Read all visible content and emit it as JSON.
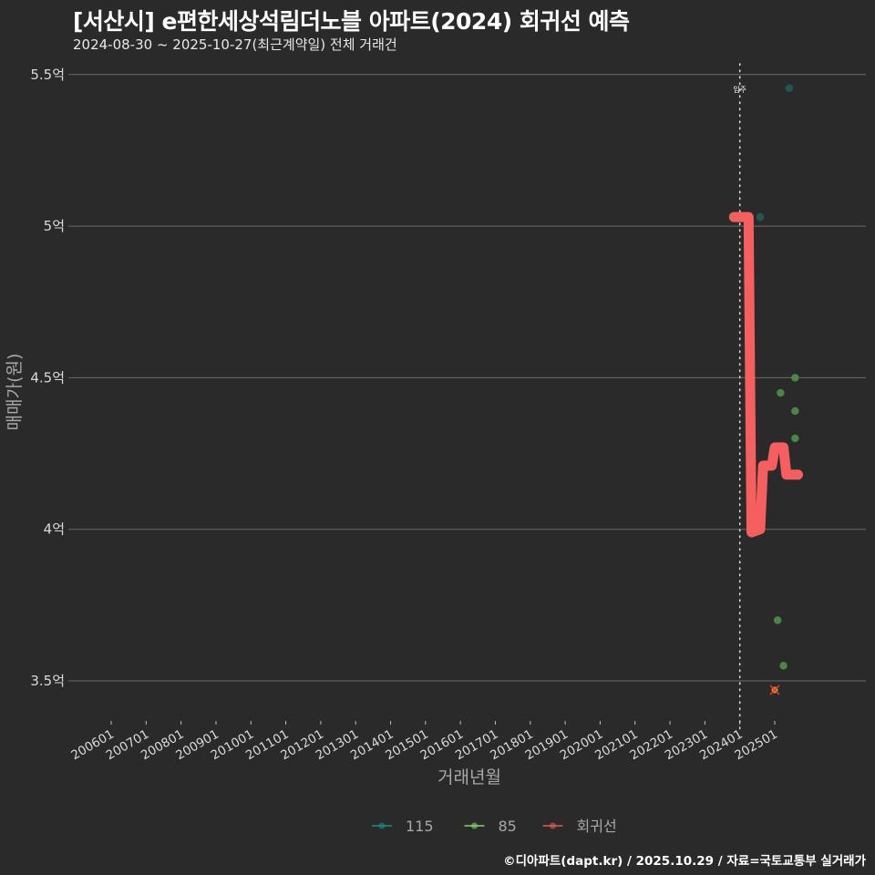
{
  "header": {
    "title": "[서산시] e편한세상석림더노블 아파트(2024) 회귀선 예측",
    "subtitle": "2024-08-30 ~ 2025-10-27(최근계약일) 전체 거래건"
  },
  "footer": {
    "credit": "©디아파트(dapt.kr) / 2025.10.29 / 자료=국토교통부 실거래가"
  },
  "colors": {
    "background": "#2b2a2a",
    "grid": "#6b6b6b",
    "series_115": "#1f5c55",
    "series_85": "#4f8a4a",
    "regression": "#f55f5f",
    "marker_x": "#e03a2a",
    "marker_x_fill": "#c9a23a"
  },
  "chart_data": {
    "type": "scatter",
    "title": "[서산시] e편한세상석림더노블 아파트(2024) 회귀선 예측",
    "subtitle": "2024-08-30 ~ 2025-10-27(최근계약일) 전체 거래건",
    "xlabel": "거래년월",
    "ylabel": "매매가(원)",
    "ylim": [
      3.4,
      5.53
    ],
    "yticks": [
      {
        "value": 3.5,
        "label": "3.5억"
      },
      {
        "value": 4.0,
        "label": "4억"
      },
      {
        "value": 4.5,
        "label": "4.5억"
      },
      {
        "value": 5.0,
        "label": "5억"
      },
      {
        "value": 5.5,
        "label": "5.5억"
      }
    ],
    "xticks": [
      "200601",
      "200701",
      "200801",
      "200901",
      "201001",
      "201101",
      "201201",
      "201301",
      "201401",
      "201501",
      "201601",
      "201701",
      "201801",
      "201901",
      "202001",
      "202101",
      "202201",
      "202301",
      "202401",
      "202501"
    ],
    "grid": true,
    "legend_position": "bottom",
    "annotations": [
      {
        "type": "vline",
        "x": "202401",
        "label": "입주",
        "style": "dotted"
      }
    ],
    "series": [
      {
        "name": "115",
        "kind": "scatter",
        "color": "#1f5c55",
        "points": [
          {
            "x": "2024-08",
            "y": 5.03
          },
          {
            "x": "2025-06",
            "y": 5.455
          }
        ]
      },
      {
        "name": "85",
        "kind": "scatter",
        "color": "#4f8a4a",
        "points": [
          {
            "x": "2025-02",
            "y": 3.7
          },
          {
            "x": "2025-04",
            "y": 3.55
          },
          {
            "x": "2025-03",
            "y": 4.45
          },
          {
            "x": "2025-08",
            "y": 4.5
          },
          {
            "x": "2025-08",
            "y": 4.39
          },
          {
            "x": "2025-08",
            "y": 4.3
          }
        ]
      },
      {
        "name": "회귀선",
        "kind": "line",
        "color": "#f55f5f",
        "points": [
          {
            "x": "2023-11",
            "y": 5.03
          },
          {
            "x": "2024-04",
            "y": 5.03
          },
          {
            "x": "2024-05",
            "y": 3.99
          },
          {
            "x": "2024-08",
            "y": 4.0
          },
          {
            "x": "2024-09",
            "y": 4.21
          },
          {
            "x": "2024-12",
            "y": 4.21
          },
          {
            "x": "2025-01",
            "y": 4.27
          },
          {
            "x": "2025-04",
            "y": 4.27
          },
          {
            "x": "2025-05",
            "y": 4.18
          },
          {
            "x": "2025-09",
            "y": 4.18
          }
        ]
      }
    ],
    "special_markers": [
      {
        "x": "2025-01",
        "y": 3.47,
        "shape": "x",
        "note": "cancelled/flagged trade"
      }
    ]
  },
  "legend": {
    "items": [
      {
        "label": "115",
        "color": "#1f8a85"
      },
      {
        "label": "85",
        "color": "#7fd36a"
      },
      {
        "label": "회귀선",
        "color": "#e05a5a"
      }
    ]
  }
}
